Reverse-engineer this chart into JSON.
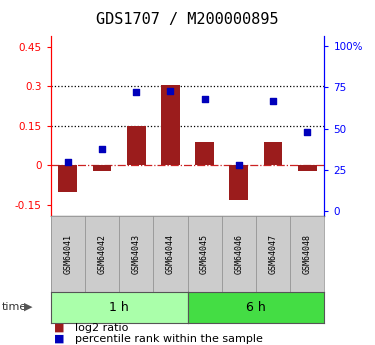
{
  "title": "GDS1707 / M200000895",
  "samples": [
    "GSM64041",
    "GSM64042",
    "GSM64043",
    "GSM64044",
    "GSM64045",
    "GSM64046",
    "GSM64047",
    "GSM64048"
  ],
  "log2_ratio": [
    -0.1,
    -0.02,
    0.15,
    0.305,
    0.09,
    -0.13,
    0.09,
    -0.02
  ],
  "percentile_rank": [
    30,
    38,
    72,
    73,
    68,
    28,
    67,
    48
  ],
  "time_groups": [
    {
      "label": "1 h",
      "start": 0,
      "end": 4,
      "color": "#aaffaa"
    },
    {
      "label": "6 h",
      "start": 4,
      "end": 8,
      "color": "#44dd44"
    }
  ],
  "bar_color": "#9B1C1C",
  "dot_color": "#0000BB",
  "ylim_left": [
    -0.19,
    0.49
  ],
  "ylim_right": [
    -2.5,
    106
  ],
  "yticks_left": [
    -0.15,
    0.0,
    0.15,
    0.3,
    0.45
  ],
  "yticks_right": [
    0,
    25,
    50,
    75,
    100
  ],
  "ytick_labels_left": [
    "-0.15",
    "0",
    "0.15",
    "0.3",
    "0.45"
  ],
  "ytick_labels_right": [
    "0",
    "25",
    "50",
    "75",
    "100%"
  ],
  "hlines": [
    0.15,
    0.3
  ],
  "title_fontsize": 11,
  "tick_fontsize": 7.5,
  "legend_fontsize": 8,
  "sample_fontsize": 6,
  "group_fontsize": 9,
  "time_fontsize": 8
}
